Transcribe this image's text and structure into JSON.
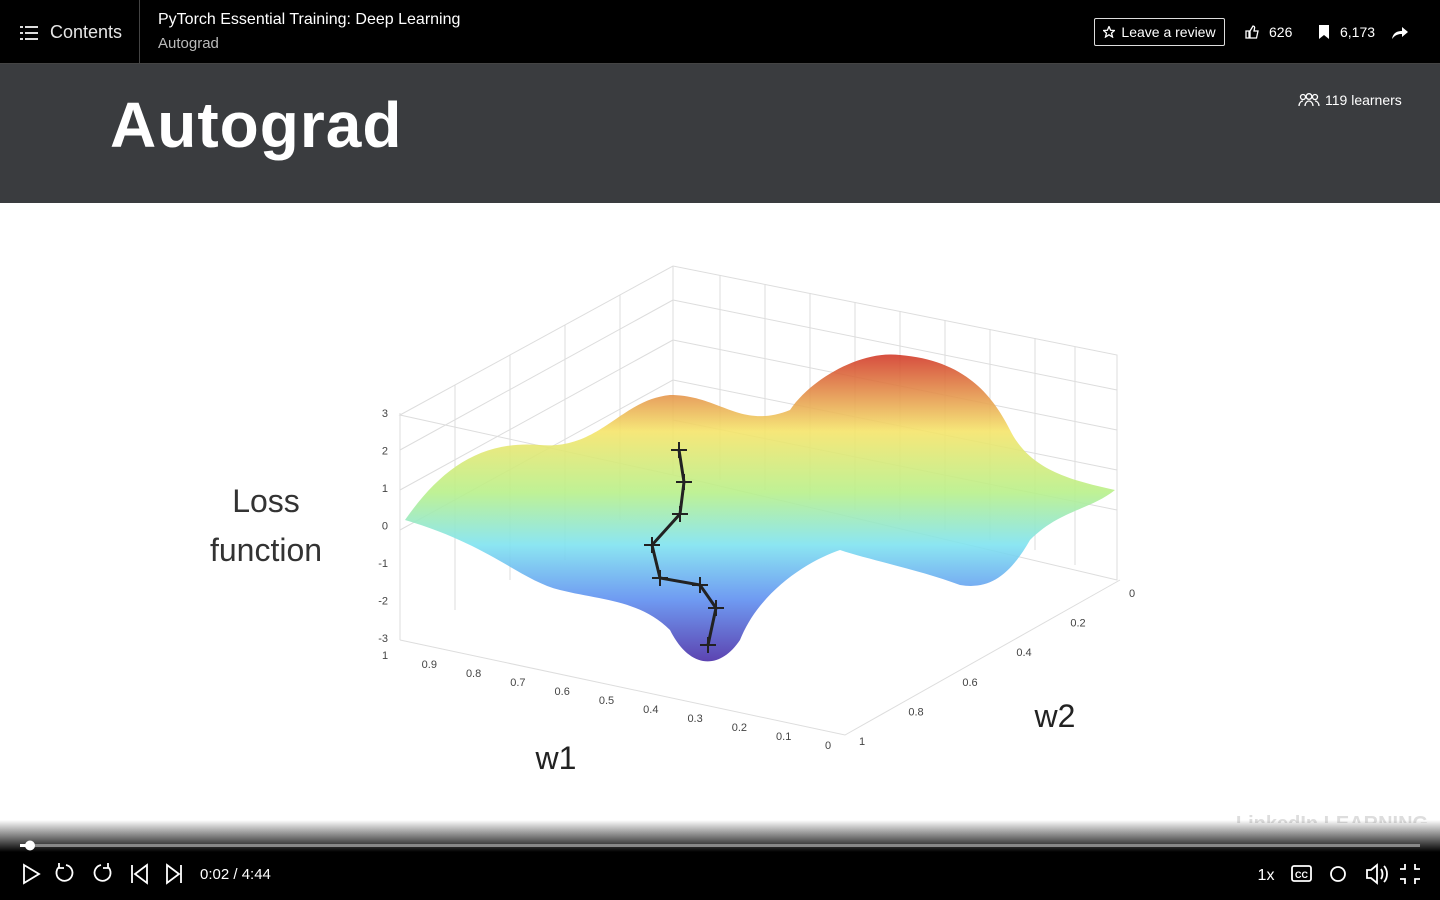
{
  "header": {
    "contents": "Contents",
    "course_title": "PyTorch Essential Training: Deep Learning",
    "video_title": "Autograd",
    "review": "Leave a review",
    "likes": "626",
    "saves": "6,173"
  },
  "slide": {
    "title": "Autograd",
    "learners": "119 learners",
    "z_label": [
      "Loss",
      "function"
    ],
    "z_ticks": [
      "3",
      "2",
      "1",
      "0",
      "-1",
      "-2",
      "-3"
    ],
    "w1_ticks": [
      "1",
      "0.9",
      "0.8",
      "0.7",
      "0.6",
      "0.5",
      "0.4",
      "0.3",
      "0.2",
      "0.1",
      "0"
    ],
    "w2_ticks": [
      "0",
      "0.2",
      "0.4",
      "0.6",
      "0.8",
      "1"
    ],
    "w1_label": "w1",
    "w2_label": "w2",
    "watermark": "LinkedIn LEARNING"
  },
  "controls": {
    "time": "0:02 / 4:44",
    "speed": "1x",
    "captions": "CC"
  }
}
